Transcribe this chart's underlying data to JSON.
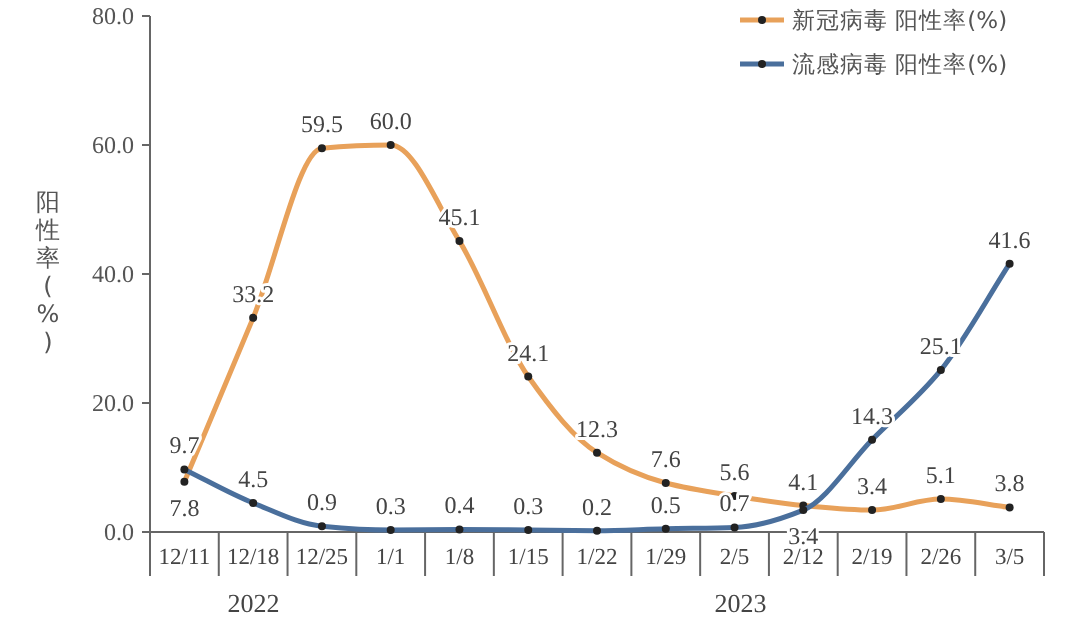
{
  "chart_data": {
    "type": "line",
    "ylabel": "阳性率(%)",
    "categories": [
      "12/11",
      "12/18",
      "12/25",
      "1/1",
      "1/8",
      "1/15",
      "1/22",
      "1/29",
      "2/5",
      "2/12",
      "2/19",
      "2/26",
      "3/5"
    ],
    "series": [
      {
        "name": "新冠病毒 阳性率(%)",
        "color": "#e8a15a",
        "values": [
          7.8,
          33.2,
          59.5,
          60.0,
          45.1,
          24.1,
          12.3,
          7.6,
          5.6,
          4.1,
          3.4,
          5.1,
          3.8
        ],
        "value_labels": [
          "7.8",
          "33.2",
          "59.5",
          "60.0",
          "45.1",
          "24.1",
          "12.3",
          "7.6",
          "5.6",
          "4.1",
          "3.4",
          "5.1",
          "3.8"
        ]
      },
      {
        "name": "流感病毒 阳性率(%)",
        "color": "#4a6f9c",
        "values": [
          9.7,
          4.5,
          0.9,
          0.3,
          0.4,
          0.3,
          0.2,
          0.5,
          0.7,
          3.4,
          14.3,
          25.1,
          41.6
        ],
        "value_labels": [
          "9.7",
          "4.5",
          "0.9",
          "0.3",
          "0.4",
          "0.3",
          "0.2",
          "0.5",
          "0.7",
          "3.4",
          "14.3",
          "25.1",
          "41.6"
        ]
      }
    ],
    "ylim": [
      0,
      80
    ],
    "yticks": [
      {
        "value": 0,
        "label": "0.0"
      },
      {
        "value": 20,
        "label": "20.0"
      },
      {
        "value": 40,
        "label": "40.0"
      },
      {
        "value": 60,
        "label": "60.0"
      },
      {
        "value": 80,
        "label": "80.0"
      }
    ],
    "annotations": [
      "2022",
      "2023"
    ],
    "grid": false,
    "legend": "top right",
    "marker": "circle",
    "line_style": "solid"
  }
}
